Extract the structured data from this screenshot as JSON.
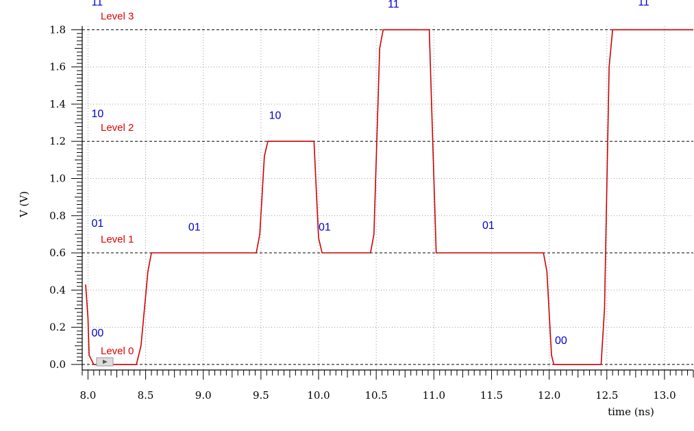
{
  "chart_data": {
    "type": "line",
    "title": "",
    "xlabel": "time (ns)",
    "ylabel": "V (V)",
    "xlim": [
      7.95,
      13.25
    ],
    "ylim": [
      -0.03,
      1.82
    ],
    "grid": true,
    "x_ticks": [
      8.0,
      8.5,
      9.0,
      9.5,
      10.0,
      10.5,
      11.0,
      11.5,
      12.0,
      12.5,
      13.0
    ],
    "x_tick_labels": [
      "8.0",
      "8.5",
      "9.0",
      "9.5",
      "10.0",
      "10.5",
      "11.0",
      "11.5",
      "12.0",
      "12.5",
      "13.0"
    ],
    "y_ticks": [
      0.0,
      0.2,
      0.4,
      0.6,
      0.8,
      1.0,
      1.2,
      1.4,
      1.6,
      1.8
    ],
    "y_tick_labels": [
      "0.0",
      "0.2",
      "0.4",
      "0.6",
      "0.8",
      "1.0",
      "1.2",
      "1.4",
      "1.6",
      "1.8"
    ],
    "reference_lines": [
      {
        "y": 0.0,
        "label": "Level 0"
      },
      {
        "y": 0.6,
        "label": "Level 1"
      },
      {
        "y": 1.2,
        "label": "Level 2"
      },
      {
        "y": 1.8,
        "label": "Level 3"
      }
    ],
    "annotations": [
      {
        "x": 8.03,
        "y": 0.15,
        "text": "00"
      },
      {
        "x": 8.03,
        "y": 0.74,
        "text": "01"
      },
      {
        "x": 8.03,
        "y": 1.33,
        "text": "10"
      },
      {
        "x": 8.03,
        "y": 1.93,
        "text": "11"
      },
      {
        "x": 8.87,
        "y": 0.72,
        "text": "01"
      },
      {
        "x": 9.57,
        "y": 1.32,
        "text": "10"
      },
      {
        "x": 10.0,
        "y": 0.72,
        "text": "01"
      },
      {
        "x": 10.6,
        "y": 1.92,
        "text": "11"
      },
      {
        "x": 11.42,
        "y": 0.73,
        "text": "01"
      },
      {
        "x": 12.05,
        "y": 0.11,
        "text": "00"
      },
      {
        "x": 12.77,
        "y": 1.93,
        "text": "11"
      }
    ],
    "series": [
      {
        "color": "#cc0000",
        "x": [
          7.98,
          8.0,
          8.01,
          8.05,
          8.42,
          8.46,
          8.52,
          8.55,
          9.46,
          9.49,
          9.53,
          9.56,
          9.96,
          10.0,
          10.03,
          10.45,
          10.48,
          10.53,
          10.56,
          10.96,
          11.0,
          11.02,
          11.95,
          11.98,
          12.02,
          12.04,
          12.45,
          12.48,
          12.52,
          12.55,
          13.25
        ],
        "y": [
          0.43,
          0.25,
          0.05,
          0.0,
          0.0,
          0.1,
          0.5,
          0.6,
          0.6,
          0.7,
          1.12,
          1.2,
          1.2,
          0.68,
          0.6,
          0.6,
          0.7,
          1.7,
          1.8,
          1.8,
          1.0,
          0.6,
          0.6,
          0.5,
          0.05,
          0.0,
          0.0,
          0.3,
          1.6,
          1.8,
          1.8
        ]
      }
    ]
  }
}
